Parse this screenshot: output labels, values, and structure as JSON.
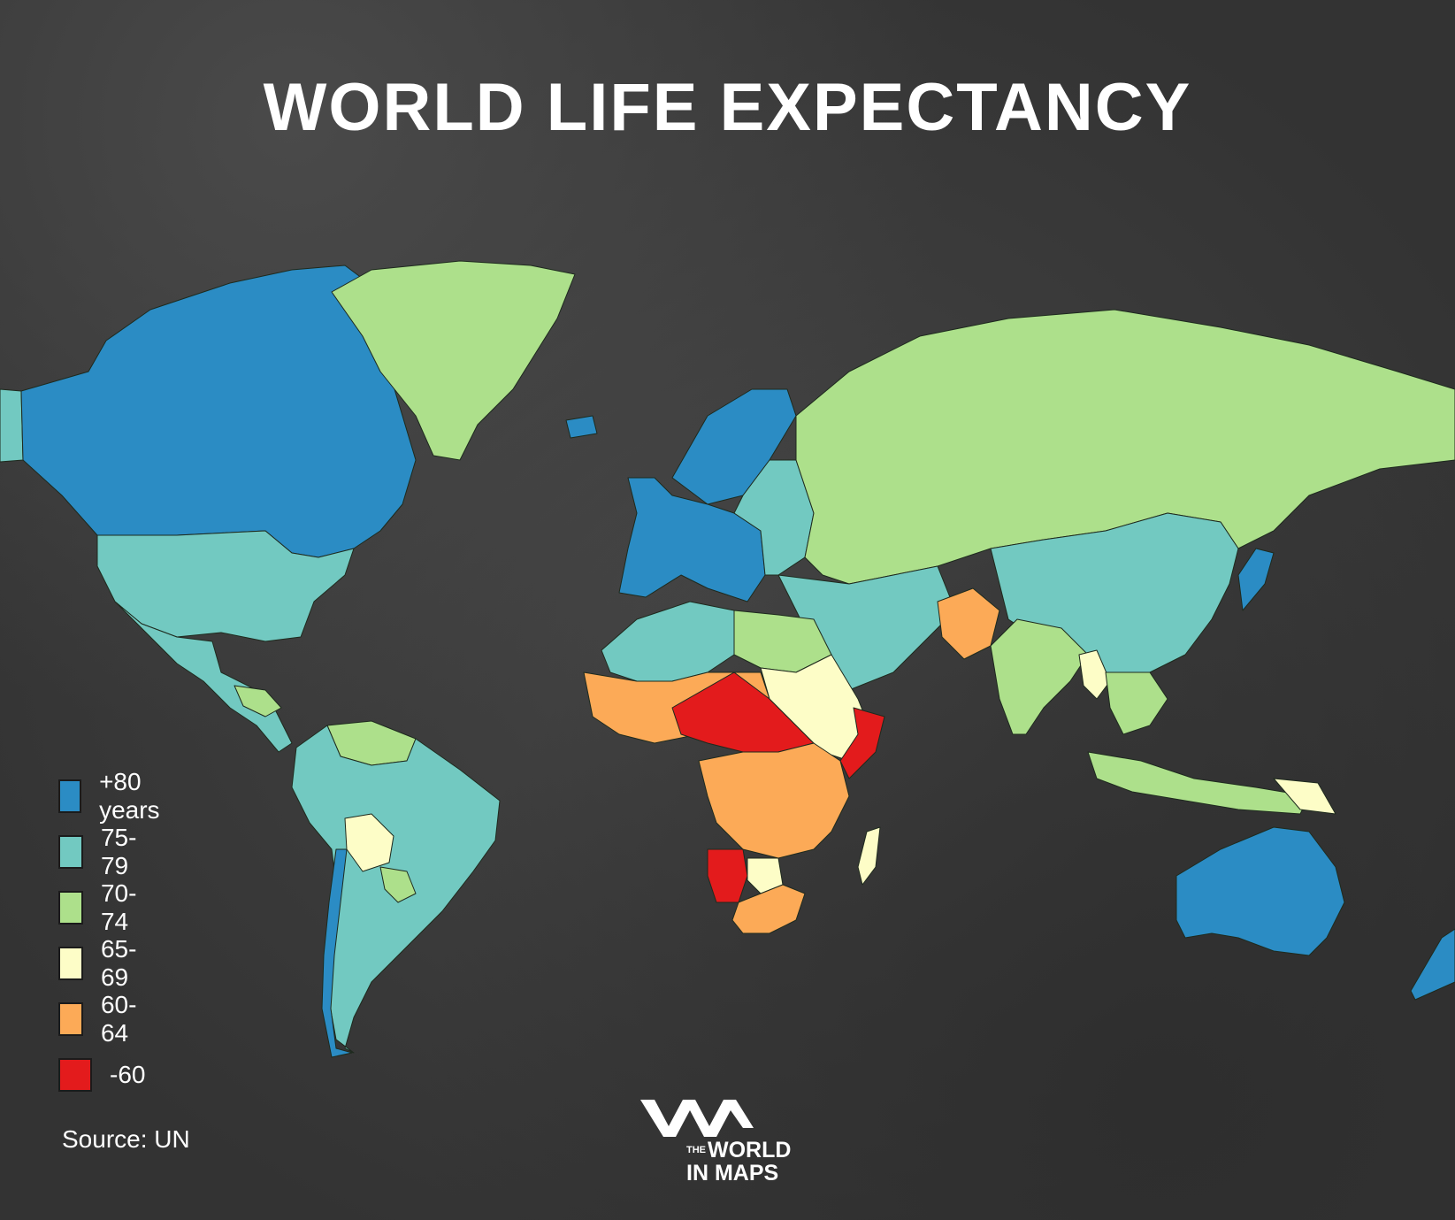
{
  "title": "WORLD LIFE EXPECTANCY",
  "source": "Source: UN",
  "logo": {
    "small": "THE",
    "line1": "WORLD",
    "line2": "IN MAPS"
  },
  "legend": [
    {
      "label": "+80 years",
      "color": "#2b8cc4"
    },
    {
      "label": "75-79",
      "color": "#72c9c1"
    },
    {
      "label": "70-74",
      "color": "#ade08b"
    },
    {
      "label": "65-69",
      "color": "#fdfdc7"
    },
    {
      "label": "60-64",
      "color": "#fcaa57"
    },
    {
      "label": "-60",
      "color": "#e31b1c"
    }
  ],
  "regions": [
    {
      "name": "canada",
      "cls": "+80 years"
    },
    {
      "name": "greenland",
      "cls": "70-74"
    },
    {
      "name": "alaska",
      "cls": "75-79"
    },
    {
      "name": "usa",
      "cls": "75-79"
    },
    {
      "name": "mexico-central-america",
      "cls": "75-79"
    },
    {
      "name": "honduras-guatemala",
      "cls": "70-74"
    },
    {
      "name": "venezuela-guyana",
      "cls": "70-74"
    },
    {
      "name": "south-america",
      "cls": "75-79"
    },
    {
      "name": "bolivia",
      "cls": "65-69"
    },
    {
      "name": "paraguay",
      "cls": "70-74"
    },
    {
      "name": "chile",
      "cls": "+80 years"
    },
    {
      "name": "northern-europe",
      "cls": "+80 years"
    },
    {
      "name": "western-europe",
      "cls": "+80 years"
    },
    {
      "name": "eastern-europe",
      "cls": "75-79"
    },
    {
      "name": "iceland",
      "cls": "+80 years"
    },
    {
      "name": "russia-central-asia",
      "cls": "70-74"
    },
    {
      "name": "china",
      "cls": "75-79"
    },
    {
      "name": "japan-korea",
      "cls": "+80 years"
    },
    {
      "name": "india",
      "cls": "70-74"
    },
    {
      "name": "pakistan-afghanistan",
      "cls": "60-64"
    },
    {
      "name": "middle-east",
      "cls": "75-79"
    },
    {
      "name": "north-africa",
      "cls": "75-79"
    },
    {
      "name": "libya-egypt",
      "cls": "70-74"
    },
    {
      "name": "west-africa-sahel",
      "cls": "60-64"
    },
    {
      "name": "central-africa-red",
      "cls": "-60"
    },
    {
      "name": "sudan-ethiopia",
      "cls": "65-69"
    },
    {
      "name": "somalia",
      "cls": "-60"
    },
    {
      "name": "central-southern-africa",
      "cls": "60-64"
    },
    {
      "name": "namibia",
      "cls": "-60"
    },
    {
      "name": "botswana",
      "cls": "65-69"
    },
    {
      "name": "south-africa",
      "cls": "60-64"
    },
    {
      "name": "madagascar",
      "cls": "65-69"
    },
    {
      "name": "southeast-asia",
      "cls": "70-74"
    },
    {
      "name": "myanmar",
      "cls": "65-69"
    },
    {
      "name": "indonesia",
      "cls": "70-74"
    },
    {
      "name": "papua-new-guinea",
      "cls": "65-69"
    },
    {
      "name": "australia",
      "cls": "+80 years"
    },
    {
      "name": "new-zealand",
      "cls": "+80 years"
    }
  ]
}
